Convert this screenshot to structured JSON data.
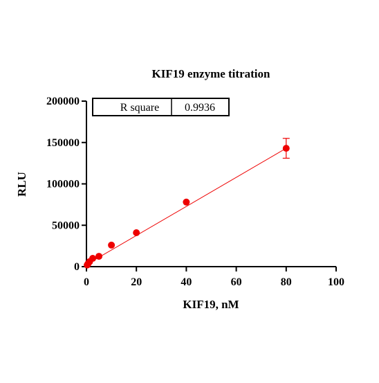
{
  "chart_data": {
    "type": "scatter",
    "title": "KIF19  enzyme titration",
    "xlabel": "KIF19, nM",
    "ylabel": "RLU",
    "xlim": [
      0,
      100
    ],
    "ylim": [
      0,
      200000
    ],
    "x_ticks": [
      0,
      20,
      40,
      60,
      80,
      100
    ],
    "y_ticks": [
      0,
      50000,
      100000,
      150000,
      200000
    ],
    "x_tick_labels": [
      "0",
      "20",
      "40",
      "60",
      "80",
      "100"
    ],
    "y_tick_labels": [
      "0",
      "50000",
      "100000",
      "150000",
      "200000"
    ],
    "series": [
      {
        "x": [
          0.3125,
          0.625,
          1.25,
          2.5,
          5,
          10,
          20,
          40,
          80
        ],
        "y": [
          2000,
          3500,
          6000,
          10000,
          12500,
          26000,
          41000,
          78000,
          143000
        ],
        "error": [
          0,
          0,
          0,
          0,
          0,
          0,
          0,
          0,
          12000
        ],
        "color": "#ee0000"
      }
    ],
    "fit_line": {
      "x": [
        0,
        80
      ],
      "y": [
        2500,
        143000
      ],
      "color": "#ee0000"
    },
    "annotation_table": {
      "label": "R square",
      "value": "0.9936"
    },
    "grid": false,
    "legend": "none"
  }
}
